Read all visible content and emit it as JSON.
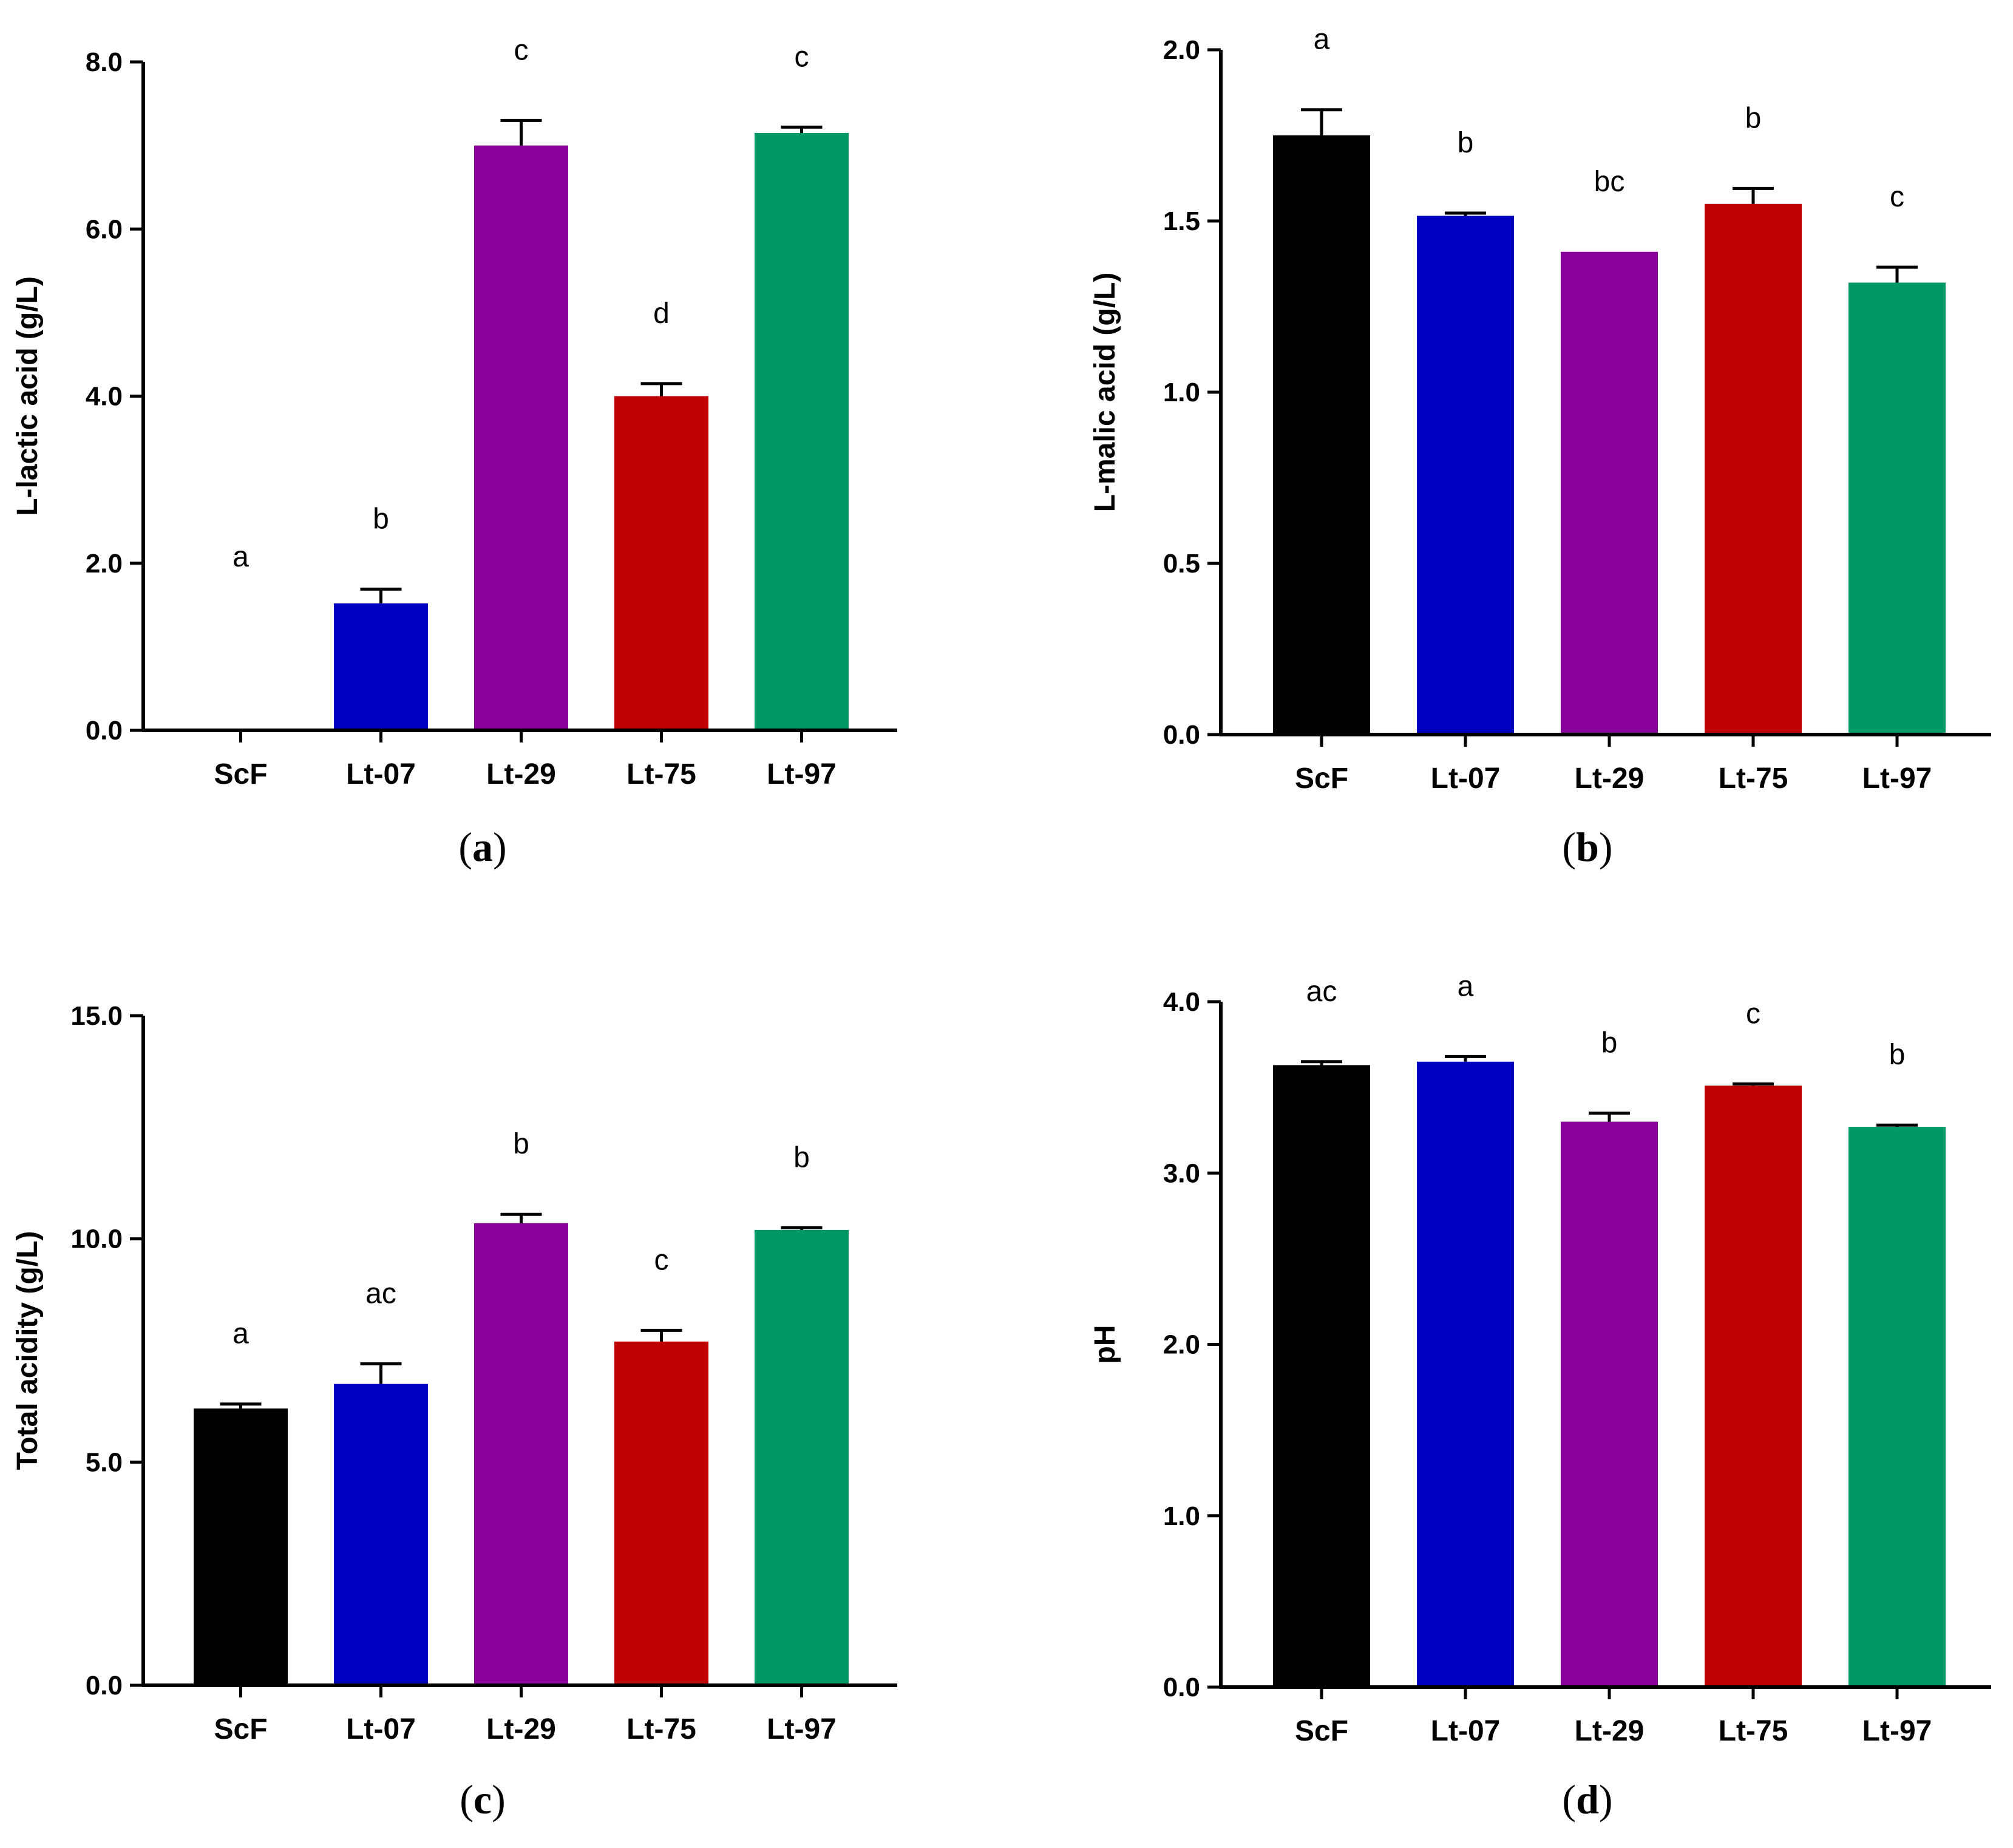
{
  "chart_data": [
    {
      "panel": "a",
      "type": "bar",
      "caption_letter": "a",
      "ylabel": "L-lactic acid (g/L)",
      "ylim": [
        0,
        8
      ],
      "yticks": [
        0,
        2,
        4,
        6,
        8
      ],
      "ytick_labels": [
        "0.0",
        "2.0",
        "4.0",
        "6.0",
        "8.0"
      ],
      "categories": [
        "ScF",
        "Lt-07",
        "Lt-29",
        "Lt-75",
        "Lt-97"
      ],
      "values": [
        0.0,
        1.52,
        7.0,
        4.0,
        7.15
      ],
      "errors": [
        0.0,
        0.17,
        0.3,
        0.15,
        0.07
      ],
      "letters": [
        "a",
        "b",
        "c",
        "d",
        "c"
      ],
      "colors": [
        "#000000",
        "#0000c0",
        "#880099",
        "#bf0000",
        "#009966"
      ]
    },
    {
      "panel": "b",
      "type": "bar",
      "caption_letter": "b",
      "ylabel": "L-malic acid (g/L)",
      "ylim": [
        0,
        2
      ],
      "yticks": [
        0,
        0.5,
        1,
        1.5,
        2
      ],
      "ytick_labels": [
        "0.0",
        "0.5",
        "1.0",
        "1.5",
        "2.0"
      ],
      "categories": [
        "ScF",
        "Lt-07",
        "Lt-29",
        "Lt-75",
        "Lt-97"
      ],
      "values": [
        1.75,
        1.515,
        1.41,
        1.55,
        1.32
      ],
      "errors": [
        0.075,
        0.008,
        0.0,
        0.045,
        0.045
      ],
      "letters": [
        "a",
        "b",
        "bc",
        "b",
        "c"
      ],
      "colors": [
        "#000000",
        "#0000c0",
        "#880099",
        "#bf0000",
        "#009966"
      ]
    },
    {
      "panel": "c",
      "type": "bar",
      "caption_letter": "c",
      "ylabel": "Total acidity (g/L)",
      "ylim": [
        0,
        15
      ],
      "yticks": [
        0,
        5,
        10,
        15
      ],
      "ytick_labels": [
        "0.0",
        "5.0",
        "10.0",
        "15.0"
      ],
      "categories": [
        "ScF",
        "Lt-07",
        "Lt-29",
        "Lt-75",
        "Lt-97"
      ],
      "values": [
        6.2,
        6.75,
        10.35,
        7.7,
        10.2
      ],
      "errors": [
        0.1,
        0.45,
        0.2,
        0.25,
        0.05
      ],
      "letters": [
        "a",
        "ac",
        "b",
        "c",
        "b"
      ],
      "colors": [
        "#000000",
        "#0000c0",
        "#880099",
        "#bf0000",
        "#009966"
      ]
    },
    {
      "panel": "d",
      "type": "bar",
      "caption_letter": "d",
      "ylabel": "pH",
      "ylim": [
        0,
        4
      ],
      "yticks": [
        0,
        1,
        2,
        3,
        4
      ],
      "ytick_labels": [
        "0.0",
        "1.0",
        "2.0",
        "3.0",
        "4.0"
      ],
      "categories": [
        "ScF",
        "Lt-07",
        "Lt-29",
        "Lt-75",
        "Lt-97"
      ],
      "values": [
        3.63,
        3.65,
        3.3,
        3.51,
        3.27
      ],
      "errors": [
        0.02,
        0.03,
        0.05,
        0.01,
        0.01
      ],
      "letters": [
        "ac",
        "a",
        "b",
        "c",
        "b"
      ],
      "colors": [
        "#000000",
        "#0000c0",
        "#880099",
        "#bf0000",
        "#009966"
      ]
    }
  ]
}
